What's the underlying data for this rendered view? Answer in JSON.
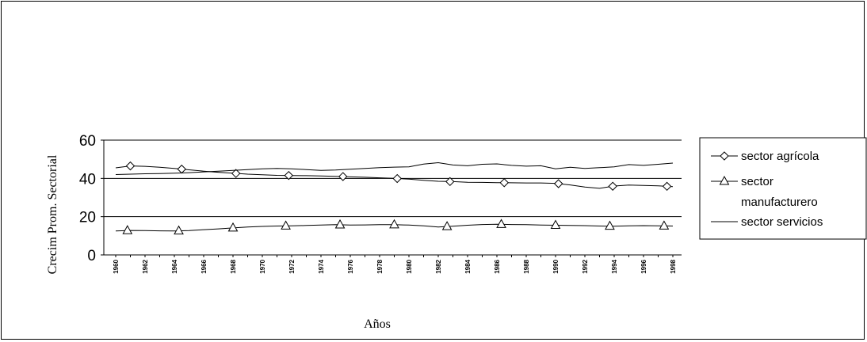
{
  "chart_data": {
    "type": "line",
    "xlabel": "Años",
    "ylabel": "Crecim Prom. Sectorial",
    "ylim": [
      0,
      60
    ],
    "yticks": [
      "0",
      "20",
      "40",
      "60"
    ],
    "xlim": [
      1960,
      1998
    ],
    "xticks": [
      "1960",
      "1962",
      "1964",
      "1966",
      "1968",
      "1970",
      "1972",
      "1974",
      "1976",
      "1978",
      "1980",
      "1982",
      "1984",
      "1986",
      "1988",
      "1990",
      "1992",
      "1994",
      "1996",
      "1998"
    ],
    "grid": "horizontal",
    "legend_position": "right",
    "series": [
      {
        "name": "sector agrícola",
        "marker": "diamond",
        "x": [
          1960,
          1961,
          1962,
          1963,
          1964,
          1965,
          1966,
          1967,
          1968,
          1969,
          1970,
          1971,
          1972,
          1973,
          1974,
          1975,
          1976,
          1977,
          1978,
          1979,
          1980,
          1981,
          1982,
          1983,
          1984,
          1985,
          1986,
          1987,
          1988,
          1989,
          1990,
          1991,
          1992,
          1993,
          1994,
          1995,
          1996,
          1997,
          1998
        ],
        "y": [
          45.5,
          46.5,
          46.3,
          45.8,
          45.2,
          44.5,
          43.8,
          43.2,
          42.7,
          42.2,
          41.9,
          41.6,
          41.5,
          41.4,
          41.3,
          41.1,
          40.8,
          40.6,
          40.3,
          40.0,
          39.6,
          39.0,
          38.5,
          38.3,
          38.0,
          37.9,
          37.8,
          37.7,
          37.6,
          37.6,
          37.4,
          36.6,
          35.5,
          34.8,
          36.0,
          36.5,
          36.3,
          36.1,
          35.7
        ],
        "marker_x": [
          1961,
          1964.5,
          1968.2,
          1971.8,
          1975.5,
          1979.2,
          1982.8,
          1986.5,
          1990.2,
          1993.9,
          1997.6
        ]
      },
      {
        "name": "sector manufacturero",
        "name_lines": [
          "sector",
          "manufacturero"
        ],
        "marker": "triangle",
        "x": [
          1960,
          1961,
          1962,
          1963,
          1964,
          1965,
          1966,
          1967,
          1968,
          1969,
          1970,
          1971,
          1972,
          1973,
          1974,
          1975,
          1976,
          1977,
          1978,
          1979,
          1980,
          1981,
          1982,
          1983,
          1984,
          1985,
          1986,
          1987,
          1988,
          1989,
          1990,
          1991,
          1992,
          1993,
          1994,
          1995,
          1996,
          1997,
          1998
        ],
        "y": [
          12.5,
          12.8,
          12.7,
          12.6,
          12.5,
          12.7,
          13.2,
          13.6,
          14.1,
          14.6,
          14.9,
          15.1,
          15.2,
          15.4,
          15.6,
          15.8,
          15.6,
          15.7,
          15.8,
          15.8,
          15.6,
          15.2,
          14.6,
          15.0,
          15.5,
          15.9,
          16.0,
          15.9,
          15.8,
          15.6,
          15.5,
          15.4,
          15.3,
          15.1,
          15.0,
          15.2,
          15.3,
          15.2,
          15.1
        ],
        "marker_x": [
          1960.8,
          1964.3,
          1968.0,
          1971.6,
          1975.3,
          1979.0,
          1982.6,
          1986.3,
          1990.0,
          1993.7,
          1997.4
        ]
      },
      {
        "name": "sector servicios",
        "marker": "none",
        "x": [
          1960,
          1961,
          1962,
          1963,
          1964,
          1965,
          1966,
          1967,
          1968,
          1969,
          1970,
          1971,
          1972,
          1973,
          1974,
          1975,
          1976,
          1977,
          1978,
          1979,
          1980,
          1981,
          1982,
          1983,
          1984,
          1985,
          1986,
          1987,
          1988,
          1989,
          1990,
          1991,
          1992,
          1993,
          1994,
          1995,
          1996,
          1997,
          1998
        ],
        "y": [
          42.0,
          42.2,
          42.4,
          42.5,
          42.7,
          43.0,
          43.4,
          43.8,
          44.2,
          44.6,
          45.0,
          45.2,
          45.0,
          44.6,
          44.2,
          44.4,
          44.8,
          45.2,
          45.6,
          45.9,
          46.0,
          47.5,
          48.2,
          47.0,
          46.6,
          47.4,
          47.6,
          46.8,
          46.4,
          46.6,
          45.0,
          45.8,
          45.2,
          45.6,
          46.0,
          47.2,
          46.8,
          47.4,
          48.0
        ]
      }
    ]
  }
}
